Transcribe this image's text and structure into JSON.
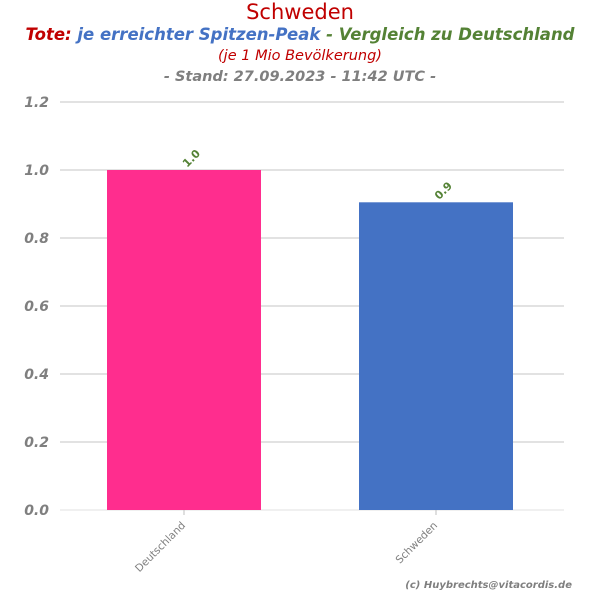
{
  "header": {
    "title": "Schweden",
    "subtitle_parts": {
      "red": "Tote:",
      "blue": "je erreichter Spitzen-Peak",
      "green": "- Vergleich zu Deutschland"
    },
    "subtitle2": "(je 1 Mio Bevölkerung)",
    "subtitle3": "- Stand: 27.09.2023 - 11:42 UTC -"
  },
  "credit": "(c) Huybrechts@vitacordis.de",
  "chart_data": {
    "type": "bar",
    "categories": [
      "Deutschland",
      "Schweden"
    ],
    "values": [
      1.0,
      0.905
    ],
    "data_labels": [
      "1.0",
      "0.9"
    ],
    "colors": [
      "#ff2d8e",
      "#4472c4"
    ],
    "ylim": [
      0,
      1.2
    ],
    "yticks": [
      "0.0",
      "0.2",
      "0.4",
      "0.6",
      "0.8",
      "1.0",
      "1.2"
    ],
    "grid": true,
    "legend": "none"
  }
}
